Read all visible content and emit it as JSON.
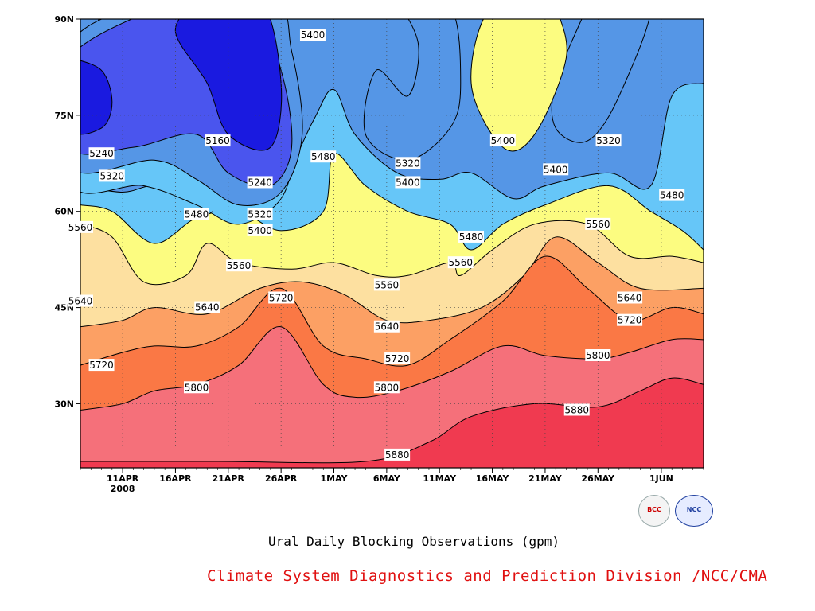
{
  "chart_data": {
    "type": "heatmap",
    "subtype": "filled-contour",
    "title": "Ural Daily Blocking Observations (gpm)",
    "y_axis": {
      "ticks": [
        {
          "value": 30,
          "label": "30N"
        },
        {
          "value": 45,
          "label": "45N"
        },
        {
          "value": 60,
          "label": "60N"
        },
        {
          "value": 75,
          "label": "75N"
        },
        {
          "value": 90,
          "label": "90N"
        }
      ],
      "range": [
        20,
        90
      ]
    },
    "x_axis": {
      "ticks": [
        {
          "value": "2008-04-11",
          "label": "11APR"
        },
        {
          "value": "2008-04-16",
          "label": "16APR"
        },
        {
          "value": "2008-04-21",
          "label": "21APR"
        },
        {
          "value": "2008-04-26",
          "label": "26APR"
        },
        {
          "value": "2008-05-01",
          "label": "1MAY"
        },
        {
          "value": "2008-05-06",
          "label": "6MAY"
        },
        {
          "value": "2008-05-11",
          "label": "11MAY"
        },
        {
          "value": "2008-05-16",
          "label": "16MAY"
        },
        {
          "value": "2008-05-21",
          "label": "21MAY"
        },
        {
          "value": "2008-05-26",
          "label": "26MAY"
        },
        {
          "value": "2008-06-01",
          "label": "1JUN"
        }
      ],
      "year_label": "2008",
      "range": [
        "2008-04-07",
        "2008-06-05"
      ]
    },
    "grid": true,
    "levels": [
      5160,
      5240,
      5320,
      5400,
      5480,
      5560,
      5640,
      5720,
      5800,
      5880
    ],
    "colors": [
      "#0d1a6e",
      "#1a1ae0",
      "#4a55ee",
      "#5596e6",
      "#66c6f8",
      "#fcfc80",
      "#fde0a0",
      "#fca064",
      "#fa7845",
      "#f5707a",
      "#f03a50"
    ],
    "contours": [
      {
        "level": 5880,
        "points": [
          [
            "2008-04-07",
            21
          ],
          [
            "2008-04-20",
            21
          ],
          [
            "2008-05-04",
            21
          ],
          [
            "2008-05-10",
            24
          ],
          [
            "2008-05-14",
            28
          ],
          [
            "2008-05-20",
            30
          ],
          [
            "2008-05-26",
            29.5
          ],
          [
            "2008-05-30",
            32
          ],
          [
            "2008-06-02",
            34
          ],
          [
            "2008-06-05",
            33
          ]
        ]
      },
      {
        "level": 5800,
        "points": [
          [
            "2008-04-07",
            29
          ],
          [
            "2008-04-11",
            30
          ],
          [
            "2008-04-14",
            32
          ],
          [
            "2008-04-18",
            33
          ],
          [
            "2008-04-22",
            36
          ],
          [
            "2008-04-26",
            42
          ],
          [
            "2008-04-30",
            33
          ],
          [
            "2008-05-03",
            31
          ],
          [
            "2008-05-07",
            32
          ],
          [
            "2008-05-12",
            35
          ],
          [
            "2008-05-17",
            39
          ],
          [
            "2008-05-21",
            37.5
          ],
          [
            "2008-05-26",
            37
          ],
          [
            "2008-05-29",
            38
          ],
          [
            "2008-06-02",
            40
          ],
          [
            "2008-06-05",
            40
          ]
        ]
      },
      {
        "level": 5720,
        "points": [
          [
            "2008-04-07",
            36
          ],
          [
            "2008-04-11",
            38
          ],
          [
            "2008-04-14",
            39
          ],
          [
            "2008-04-18",
            39
          ],
          [
            "2008-04-22",
            42
          ],
          [
            "2008-04-26",
            48
          ],
          [
            "2008-04-30",
            39
          ],
          [
            "2008-05-04",
            37
          ],
          [
            "2008-05-08",
            36
          ],
          [
            "2008-05-12",
            40
          ],
          [
            "2008-05-17",
            46
          ],
          [
            "2008-05-21",
            53
          ],
          [
            "2008-05-25",
            48
          ],
          [
            "2008-05-29",
            43
          ],
          [
            "2008-06-02",
            45
          ],
          [
            "2008-06-05",
            44
          ]
        ]
      },
      {
        "level": 5640,
        "points": [
          [
            "2008-04-07",
            42
          ],
          [
            "2008-04-11",
            43
          ],
          [
            "2008-04-14",
            45
          ],
          [
            "2008-04-19",
            44
          ],
          [
            "2008-04-24",
            48
          ],
          [
            "2008-04-28",
            49
          ],
          [
            "2008-05-02",
            47
          ],
          [
            "2008-05-06",
            43
          ],
          [
            "2008-05-10",
            43
          ],
          [
            "2008-05-15",
            45
          ],
          [
            "2008-05-19",
            50
          ],
          [
            "2008-05-22",
            56
          ],
          [
            "2008-05-26",
            52
          ],
          [
            "2008-05-30",
            48
          ],
          [
            "2008-06-05",
            48
          ]
        ]
      },
      {
        "level": 5560,
        "points": [
          [
            "2008-04-07",
            58
          ],
          [
            "2008-04-10",
            56
          ],
          [
            "2008-04-13",
            49
          ],
          [
            "2008-04-17",
            50
          ],
          [
            "2008-04-19",
            55
          ],
          [
            "2008-04-22",
            52
          ],
          [
            "2008-04-27",
            51
          ],
          [
            "2008-05-01",
            52
          ],
          [
            "2008-05-05",
            50
          ],
          [
            "2008-05-08",
            50
          ],
          [
            "2008-05-12",
            52
          ],
          [
            "2008-05-13",
            50
          ],
          [
            "2008-05-16",
            54
          ],
          [
            "2008-05-20",
            58
          ],
          [
            "2008-05-25",
            58
          ],
          [
            "2008-05-29",
            53
          ],
          [
            "2008-06-02",
            53
          ],
          [
            "2008-06-05",
            52
          ]
        ]
      },
      {
        "level": 5480,
        "points": [
          [
            "2008-04-07",
            61
          ],
          [
            "2008-04-10",
            60
          ],
          [
            "2008-04-14",
            55
          ],
          [
            "2008-04-18",
            59
          ],
          [
            "2008-04-22",
            60
          ],
          [
            "2008-04-26",
            57
          ],
          [
            "2008-04-30",
            60
          ],
          [
            "2008-05-01",
            69
          ],
          [
            "2008-05-04",
            64
          ],
          [
            "2008-05-08",
            60
          ],
          [
            "2008-05-12",
            58
          ],
          [
            "2008-05-14",
            54
          ],
          [
            "2008-05-17",
            58
          ],
          [
            "2008-05-21",
            61
          ],
          [
            "2008-05-27",
            64
          ],
          [
            "2008-05-31",
            60
          ],
          [
            "2008-06-03",
            57
          ],
          [
            "2008-06-05",
            54
          ]
        ]
      },
      {
        "level": 5400,
        "points": [
          [
            "2008-04-07",
            64
          ],
          [
            "2008-04-11",
            63
          ],
          [
            "2008-04-14",
            64
          ],
          [
            "2008-04-17",
            62
          ],
          [
            "2008-04-21",
            59
          ],
          [
            "2008-04-25",
            61
          ],
          [
            "2008-04-29",
            74
          ],
          [
            "2008-05-01",
            79
          ],
          [
            "2008-05-03",
            72
          ],
          [
            "2008-05-07",
            66
          ],
          [
            "2008-05-11",
            65
          ],
          [
            "2008-05-14",
            66
          ],
          [
            "2008-05-18",
            62
          ],
          [
            "2008-05-21",
            64
          ],
          [
            "2008-05-27",
            66
          ],
          [
            "2008-05-31",
            64
          ],
          [
            "2008-06-02",
            78
          ],
          [
            "2008-06-05",
            80
          ]
        ]
      }
    ],
    "contour_labels": [
      {
        "level": 5400,
        "label": "5400",
        "x": "2008-04-29",
        "y": 87.5
      },
      {
        "level": 5160,
        "label": "5160",
        "x": "2008-04-20",
        "y": 71
      },
      {
        "level": 5240,
        "label": "5240",
        "x": "2008-04-09",
        "y": 69
      },
      {
        "level": 5320,
        "label": "5320",
        "x": "2008-04-10",
        "y": 65.5
      },
      {
        "level": 5240,
        "label": "5240",
        "x": "2008-04-24",
        "y": 64.5
      },
      {
        "level": 5480,
        "label": "5480",
        "x": "2008-04-30",
        "y": 68.5
      },
      {
        "level": 5480,
        "label": "5480",
        "x": "2008-04-18",
        "y": 59.5
      },
      {
        "level": 5320,
        "label": "5320",
        "x": "2008-04-24",
        "y": 59.5
      },
      {
        "level": 5400,
        "label": "5400",
        "x": "2008-04-24",
        "y": 57
      },
      {
        "level": 5320,
        "label": "5320",
        "x": "2008-05-08",
        "y": 67.5
      },
      {
        "level": 5400,
        "label": "5400",
        "x": "2008-05-08",
        "y": 64.5
      },
      {
        "level": 5400,
        "label": "5400",
        "x": "2008-05-17",
        "y": 71
      },
      {
        "level": 5320,
        "label": "5320",
        "x": "2008-05-27",
        "y": 71
      },
      {
        "level": 5400,
        "label": "5400",
        "x": "2008-05-22",
        "y": 66.5
      },
      {
        "level": 5480,
        "label": "5480",
        "x": "2008-06-02",
        "y": 62.5
      },
      {
        "level": 5560,
        "label": "5560",
        "x": "2008-05-26",
        "y": 58
      },
      {
        "level": 5480,
        "label": "5480",
        "x": "2008-05-14",
        "y": 56
      },
      {
        "level": 5560,
        "label": "5560",
        "x": "2008-05-13",
        "y": 52
      },
      {
        "level": 5560,
        "label": "5560",
        "x": "2008-04-07",
        "y": 57.5
      },
      {
        "level": 5560,
        "label": "5560",
        "x": "2008-04-22",
        "y": 51.5
      },
      {
        "level": 5560,
        "label": "5560",
        "x": "2008-05-06",
        "y": 48.5
      },
      {
        "level": 5640,
        "label": "5640",
        "x": "2008-04-07",
        "y": 46
      },
      {
        "level": 5640,
        "label": "5640",
        "x": "2008-04-19",
        "y": 45
      },
      {
        "level": 5720,
        "label": "5720",
        "x": "2008-04-26",
        "y": 46.5
      },
      {
        "level": 5640,
        "label": "5640",
        "x": "2008-05-06",
        "y": 42
      },
      {
        "level": 5640,
        "label": "5640",
        "x": "2008-05-29",
        "y": 46.5
      },
      {
        "level": 5720,
        "label": "5720",
        "x": "2008-05-29",
        "y": 43
      },
      {
        "level": 5720,
        "label": "5720",
        "x": "2008-04-09",
        "y": 36
      },
      {
        "level": 5720,
        "label": "5720",
        "x": "2008-05-07",
        "y": 37
      },
      {
        "level": 5800,
        "label": "5800",
        "x": "2008-05-26",
        "y": 37.5
      },
      {
        "level": 5800,
        "label": "5800",
        "x": "2008-04-18",
        "y": 32.5
      },
      {
        "level": 5800,
        "label": "5800",
        "x": "2008-05-06",
        "y": 32.5
      },
      {
        "level": 5880,
        "label": "5880",
        "x": "2008-05-24",
        "y": 29
      },
      {
        "level": 5880,
        "label": "5880",
        "x": "2008-05-07",
        "y": 22
      }
    ]
  },
  "caption": "Ural Daily Blocking Observations (gpm)",
  "credit": "Climate System Diagnostics and Prediction Division /NCC/CMA",
  "logos": [
    {
      "icon": "bcc-logo-icon",
      "text": "BCC"
    },
    {
      "icon": "ncc-logo-icon",
      "text": "NCC"
    }
  ]
}
